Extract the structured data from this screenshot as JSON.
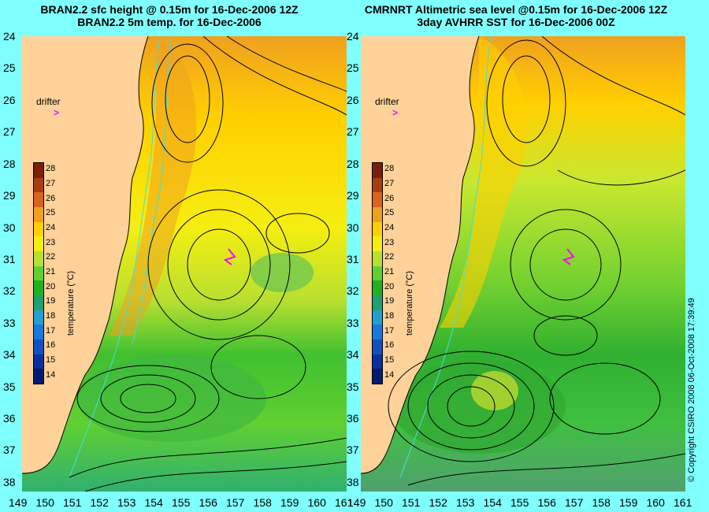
{
  "titles": {
    "left": {
      "line1": "BRAN2.2 sfc height @ 0.15m for 16-Dec-2006 12Z",
      "line2": "BRAN2.2 5m temp. for 16-Dec-2006"
    },
    "right": {
      "line1": "CMRNRT Altimetric sea level  @0.15m  for 16-Dec-2006 12Z",
      "line2": "3day AVHRR SST for 16-Dec-2006 00Z"
    }
  },
  "axes": {
    "lat_labels": [
      "24",
      "25",
      "26",
      "27",
      "28",
      "29",
      "30",
      "31",
      "32",
      "33",
      "34",
      "35",
      "36",
      "37",
      "38"
    ],
    "lon_labels": [
      "149",
      "150",
      "151",
      "152",
      "153",
      "154",
      "155",
      "156",
      "157",
      "158",
      "159",
      "160",
      "161"
    ],
    "lat_range": [
      24,
      38.3
    ],
    "lon_range": [
      149,
      161
    ]
  },
  "drifter": {
    "label": "drifter",
    "marker": ">",
    "color": "#ff00ff",
    "track_lon": [
      156.6,
      156.8,
      156.5,
      156.7
    ],
    "track_lat": [
      30.9,
      31.1,
      31.0,
      31.2
    ]
  },
  "colorbar": {
    "title": "temperature (°C)",
    "labels": [
      "28",
      "27",
      "26",
      "25",
      "24",
      "23",
      "22",
      "21",
      "20",
      "19",
      "18",
      "17",
      "16",
      "15",
      "14"
    ],
    "colors": [
      "#7a1f0a",
      "#a83c12",
      "#d9641c",
      "#f0a020",
      "#ffd000",
      "#f5ee10",
      "#b8e030",
      "#60d030",
      "#20b020",
      "#20a070",
      "#20a0d0",
      "#1878e0",
      "#1050c0",
      "#0830a0",
      "#001a70"
    ]
  },
  "copyright": "© Copyright CSIRO 2008   06-Oct-2008 17:39:49",
  "colors": {
    "background": "#80ffff",
    "land": "#ffd29a",
    "contour": "#000000",
    "bathymetry": "#40e0e0"
  }
}
